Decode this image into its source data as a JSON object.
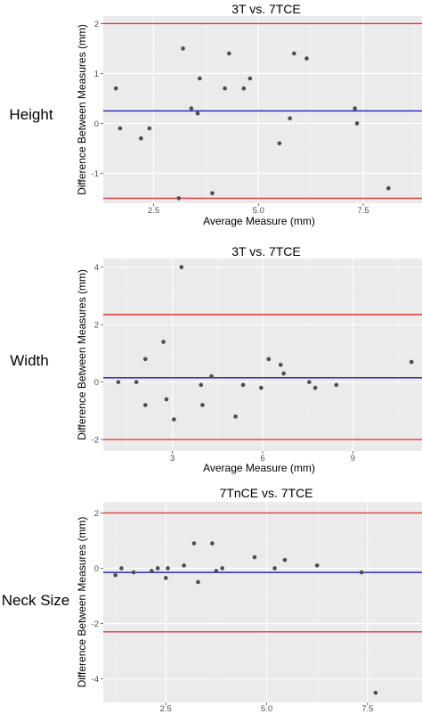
{
  "chart_data": [
    {
      "type": "scatter",
      "row_label": "Height",
      "title": "3T vs. 7TCE",
      "xlabel": "Average Measure (mm)",
      "ylabel": "Difference Between Measures (mm)",
      "xlim": [
        1.3,
        8.9
      ],
      "ylim": [
        -1.6,
        2.15
      ],
      "xticks": [
        2.5,
        5.0,
        7.5
      ],
      "xtick_labels": [
        "2.5",
        "5.0",
        "7.5"
      ],
      "yticks": [
        -1,
        0,
        1,
        2
      ],
      "ytick_labels": [
        "-1",
        "0",
        "1",
        "2"
      ],
      "mean_line": 0.25,
      "limits_of_agreement": [
        -1.5,
        2.0
      ],
      "points": [
        {
          "x": 1.6,
          "y": 0.7
        },
        {
          "x": 1.7,
          "y": -0.1
        },
        {
          "x": 2.2,
          "y": -0.3
        },
        {
          "x": 2.4,
          "y": -0.1
        },
        {
          "x": 3.1,
          "y": -1.5
        },
        {
          "x": 3.2,
          "y": 1.5
        },
        {
          "x": 3.4,
          "y": 0.3
        },
        {
          "x": 3.6,
          "y": 0.9
        },
        {
          "x": 3.55,
          "y": 0.2
        },
        {
          "x": 3.9,
          "y": -1.4
        },
        {
          "x": 4.2,
          "y": 0.7
        },
        {
          "x": 4.3,
          "y": 1.4
        },
        {
          "x": 4.65,
          "y": 0.7
        },
        {
          "x": 4.8,
          "y": 0.9
        },
        {
          "x": 5.5,
          "y": -0.4
        },
        {
          "x": 5.75,
          "y": 0.1
        },
        {
          "x": 5.85,
          "y": 1.4
        },
        {
          "x": 6.15,
          "y": 1.3
        },
        {
          "x": 7.3,
          "y": 0.3
        },
        {
          "x": 7.35,
          "y": 0.0
        },
        {
          "x": 8.1,
          "y": -1.3
        }
      ]
    },
    {
      "type": "scatter",
      "row_label": "Width",
      "title": "3T vs. 7TCE",
      "xlabel": "Average Measure (mm)",
      "ylabel": "Difference Between Measures (mm)",
      "xlim": [
        0.7,
        11.3
      ],
      "ylim": [
        -2.4,
        4.3
      ],
      "xticks": [
        3,
        6,
        9
      ],
      "xtick_labels": [
        "3",
        "6",
        "9"
      ],
      "yticks": [
        -2,
        0,
        2,
        4
      ],
      "ytick_labels": [
        "-2",
        "0",
        "2",
        "4"
      ],
      "mean_line": 0.15,
      "limits_of_agreement": [
        -2.0,
        2.35
      ],
      "points": [
        {
          "x": 1.2,
          "y": 0.0
        },
        {
          "x": 1.8,
          "y": 0.0
        },
        {
          "x": 2.1,
          "y": 0.8
        },
        {
          "x": 2.1,
          "y": -0.8
        },
        {
          "x": 2.7,
          "y": 1.4
        },
        {
          "x": 2.8,
          "y": -0.6
        },
        {
          "x": 3.05,
          "y": -1.3
        },
        {
          "x": 3.3,
          "y": 4.0
        },
        {
          "x": 3.95,
          "y": -0.1
        },
        {
          "x": 4.0,
          "y": -0.8
        },
        {
          "x": 4.3,
          "y": 0.2
        },
        {
          "x": 5.1,
          "y": -1.2
        },
        {
          "x": 5.35,
          "y": -0.1
        },
        {
          "x": 5.95,
          "y": -0.2
        },
        {
          "x": 6.2,
          "y": 0.8
        },
        {
          "x": 6.6,
          "y": 0.6
        },
        {
          "x": 6.7,
          "y": 0.3
        },
        {
          "x": 7.55,
          "y": 0.0
        },
        {
          "x": 7.75,
          "y": -0.2
        },
        {
          "x": 8.45,
          "y": -0.1
        },
        {
          "x": 10.95,
          "y": 0.7
        }
      ]
    },
    {
      "type": "scatter",
      "row_label": "Neck Size",
      "title": "7TnCE vs. 7TCE",
      "xlabel": "Average Measure (mm)",
      "ylabel": "Difference Between Measures (mm)",
      "xlim": [
        0.95,
        8.85
      ],
      "ylim": [
        -4.85,
        2.4
      ],
      "xticks": [
        2.5,
        5.0,
        7.5
      ],
      "xtick_labels": [
        "2.5",
        "5.0",
        "7.5"
      ],
      "yticks": [
        -4,
        -2,
        0,
        2
      ],
      "ytick_labels": [
        "-4",
        "-2",
        "0",
        "2"
      ],
      "mean_line": -0.15,
      "limits_of_agreement": [
        -2.3,
        2.0
      ],
      "points": [
        {
          "x": 1.25,
          "y": -0.25
        },
        {
          "x": 1.4,
          "y": 0.0
        },
        {
          "x": 1.7,
          "y": -0.15
        },
        {
          "x": 2.15,
          "y": -0.1
        },
        {
          "x": 2.3,
          "y": 0.0
        },
        {
          "x": 2.5,
          "y": -0.35
        },
        {
          "x": 2.55,
          "y": 0.0
        },
        {
          "x": 2.95,
          "y": 0.1
        },
        {
          "x": 3.2,
          "y": 0.9
        },
        {
          "x": 3.3,
          "y": -0.5
        },
        {
          "x": 3.65,
          "y": 0.9
        },
        {
          "x": 3.75,
          "y": -0.1
        },
        {
          "x": 3.9,
          "y": 0.0
        },
        {
          "x": 4.7,
          "y": 0.4
        },
        {
          "x": 5.2,
          "y": 0.0
        },
        {
          "x": 5.45,
          "y": 0.3
        },
        {
          "x": 6.25,
          "y": 0.1
        },
        {
          "x": 7.35,
          "y": -0.15
        },
        {
          "x": 7.7,
          "y": -4.5
        }
      ]
    }
  ],
  "colors": {
    "panel_bg": "#ebebeb",
    "grid_major": "#ffffff",
    "grid_minor": "#f4f4f4",
    "mean_line": "#1f1fb4",
    "limit_line": "#e03a3a",
    "point": "#4d4d4d"
  }
}
